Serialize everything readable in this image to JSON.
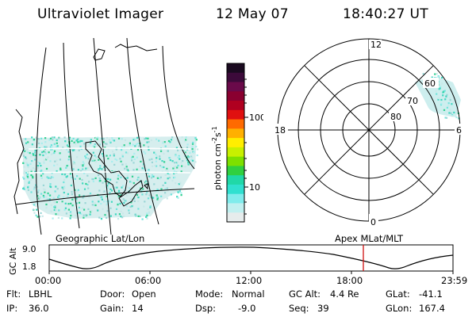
{
  "header": {
    "instrument": "Ultraviolet Imager",
    "date": "12 May 07",
    "time": "18:40:27 UT"
  },
  "geo_panel": {
    "caption": "Geographic Lat/Lon"
  },
  "colorbar": {
    "unit_prefix": "photon cm",
    "unit_exp1": "-2",
    "unit_mid": "s",
    "unit_exp2": "-1",
    "ticks": [
      "100",
      "10"
    ],
    "colors": [
      "#1a0a20",
      "#3c0a3a",
      "#6a0a4a",
      "#8a0030",
      "#b00020",
      "#e01010",
      "#ff6a00",
      "#ffb000",
      "#ffee00",
      "#c8f000",
      "#7ee000",
      "#30d040",
      "#20d8a8",
      "#30e0d0",
      "#80ecec",
      "#c0f0f0",
      "#e6ecec"
    ]
  },
  "polar_panel": {
    "caption": "Apex  MLat/MLT",
    "mlt_labels": {
      "top": "12",
      "right": "6",
      "bottom": "0",
      "left": "18"
    },
    "lat_labels": [
      "60",
      "70",
      "80"
    ]
  },
  "timeline": {
    "ylabel": "GC Alt",
    "yticks": [
      "9.0",
      "1.8"
    ],
    "xticks": [
      "00:00",
      "06:00",
      "12:00",
      "18:00",
      "23:59"
    ],
    "current_marker_hours": 18.67,
    "marker_color": "#d01010"
  },
  "info": {
    "flt_label": "Flt:",
    "flt": "LBHL",
    "ip_label": "IP:",
    "ip": "36.0",
    "door_label": "Door:",
    "door": "Open",
    "gain_label": "Gain:",
    "gain": "14",
    "mode_label": "Mode:",
    "mode": "Normal",
    "dsp_label": "Dsp:",
    "dsp": "-9.0",
    "gcalt_label": "GC Alt:",
    "gcalt": "4.4 Re",
    "seq_label": "Seq:",
    "seq": "39",
    "glat_label": "GLat:",
    "glat": "-41.1",
    "glon_label": "GLon:",
    "glon": "167.4"
  }
}
